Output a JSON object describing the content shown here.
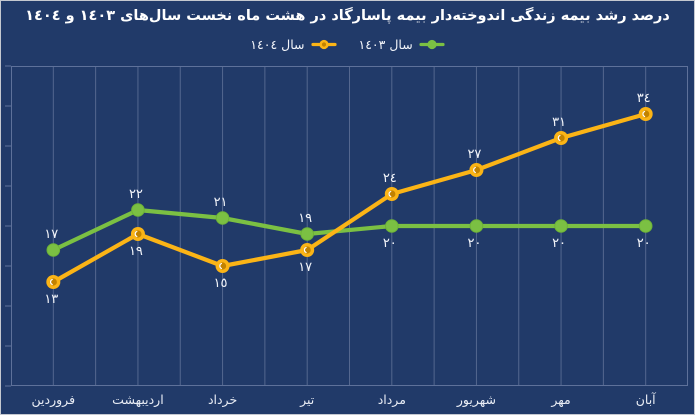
{
  "title": "درصد رشد بیمه زندگی اندوخته‌دار بیمه پاسارگاد در هشت ماه نخست سال‌های ١٤٠٣ و ١٤٠٤",
  "legend": {
    "position": "top-center",
    "items": [
      {
        "label": "سال ١٤٠٣",
        "color": "#7BC043",
        "marker": "line-solid-dot"
      },
      {
        "label": "سال ١٤٠٤",
        "color": "#FBB416",
        "marker": "line-donut-dot",
        "inner_color": "#C28200"
      }
    ]
  },
  "chart_data": {
    "type": "line",
    "title": "درصد رشد بیمه زندگی اندوخته‌دار بیمه پاسارگاد در هشت ماه نخست سال‌های ١٤٠٣ و ١٤٠٤",
    "categories": [
      "فروردین",
      "اردیبهشت",
      "خرداد",
      "تیر",
      "مرداد",
      "شهریور",
      "مهر",
      "آبان"
    ],
    "series": [
      {
        "name": "سال ١٤٠٣",
        "color": "#7BC043",
        "marker": "solid",
        "values": [
          17,
          22,
          21,
          19,
          20,
          20,
          20,
          20
        ],
        "labels": [
          "١٧",
          "٢٢",
          "٢١",
          "١٩",
          "٢٠",
          "٢٠",
          "٢٠",
          "٢٠"
        ],
        "label_side": [
          "above",
          "above",
          "above",
          "above",
          "below",
          "below",
          "below",
          "below"
        ]
      },
      {
        "name": "سال ١٤٠٤",
        "color": "#FBB416",
        "marker": "donut",
        "inner_color": "#C28200",
        "values": [
          13,
          19,
          15,
          17,
          24,
          27,
          31,
          34
        ],
        "labels": [
          "١٣",
          "١٩",
          "١٥",
          "١٧",
          "٢٤",
          "٢٧",
          "٣١",
          "٣٤"
        ],
        "label_side": [
          "below",
          "below",
          "below",
          "below",
          "above",
          "above",
          "above",
          "above"
        ]
      }
    ],
    "ylim": [
      0,
      40
    ],
    "y_tick_step": 5,
    "y_tick_labels_visible": false,
    "x_axis_label_row": true,
    "grid": "vertical-only",
    "minor_vertical_gridlines": true,
    "legend_position": "top-center"
  },
  "colors": {
    "background": "#213A69",
    "grid": "#54678F",
    "axis": "#5E719A",
    "title_text": "#FFFFFF",
    "data_label_text": "#F3F5FA",
    "month_text": "#E9EDF5"
  }
}
